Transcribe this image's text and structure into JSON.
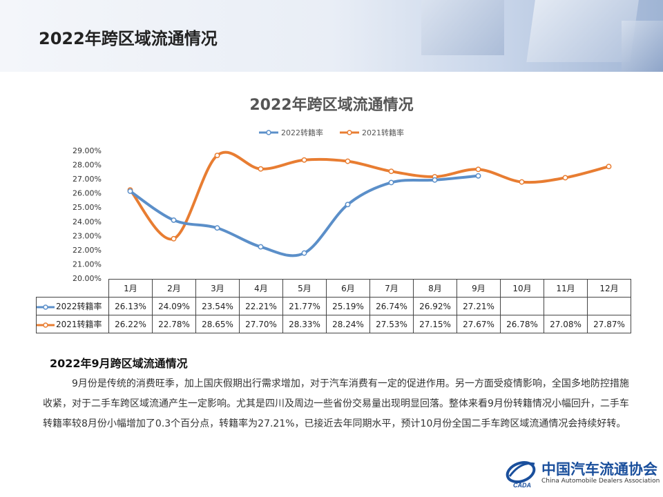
{
  "page": {
    "title": "2022年跨区域流通情况"
  },
  "chart_data": {
    "type": "line",
    "title": "2022年跨区域流通情况",
    "categories": [
      "1月",
      "2月",
      "3月",
      "4月",
      "5月",
      "6月",
      "7月",
      "8月",
      "9月",
      "10月",
      "11月",
      "12月"
    ],
    "series": [
      {
        "name": "2022转籍率",
        "color": "#5b8fc9",
        "values": [
          26.13,
          24.09,
          23.54,
          22.21,
          21.77,
          25.19,
          26.74,
          26.92,
          27.21,
          null,
          null,
          null
        ],
        "labels": [
          "26.13%",
          "24.09%",
          "23.54%",
          "22.21%",
          "21.77%",
          "25.19%",
          "26.74%",
          "26.92%",
          "27.21%",
          "",
          "",
          ""
        ]
      },
      {
        "name": "2021转籍率",
        "color": "#e87d32",
        "values": [
          26.22,
          22.78,
          28.65,
          27.7,
          28.33,
          28.24,
          27.53,
          27.15,
          27.67,
          26.78,
          27.08,
          27.87
        ],
        "labels": [
          "26.22%",
          "22.78%",
          "28.65%",
          "27.70%",
          "28.33%",
          "28.24%",
          "27.53%",
          "27.15%",
          "27.67%",
          "26.78%",
          "27.08%",
          "27.87%"
        ]
      }
    ],
    "ylim": [
      20,
      29
    ],
    "yticks": [
      "29.00%",
      "28.00%",
      "27.00%",
      "26.00%",
      "25.00%",
      "24.00%",
      "23.00%",
      "22.00%",
      "21.00%",
      "20.00%"
    ],
    "legend": "top",
    "grid": false
  },
  "section": {
    "title": "2022年9月跨区域流通情况",
    "body": "9月份是传统的消费旺季，加上国庆假期出行需求增加，对于汽车消费有一定的促进作用。另一方面受疫情影响，全国多地防控措施收紧，对于二手车跨区域流通产生一定影响。尤其是四川及周边一些省份交易量出现明显回落。整体来看9月份转籍情况小幅回升，二手车转籍率较8月份小幅增加了0.3个百分点，转籍率为27.21%，已接近去年同期水平，预计10月份全国二手车跨区域流通情况会持续好转。"
  },
  "logo": {
    "name": "中国汽车流通协会",
    "english": "China Automobile Dealers Association",
    "mark": "CADA"
  }
}
